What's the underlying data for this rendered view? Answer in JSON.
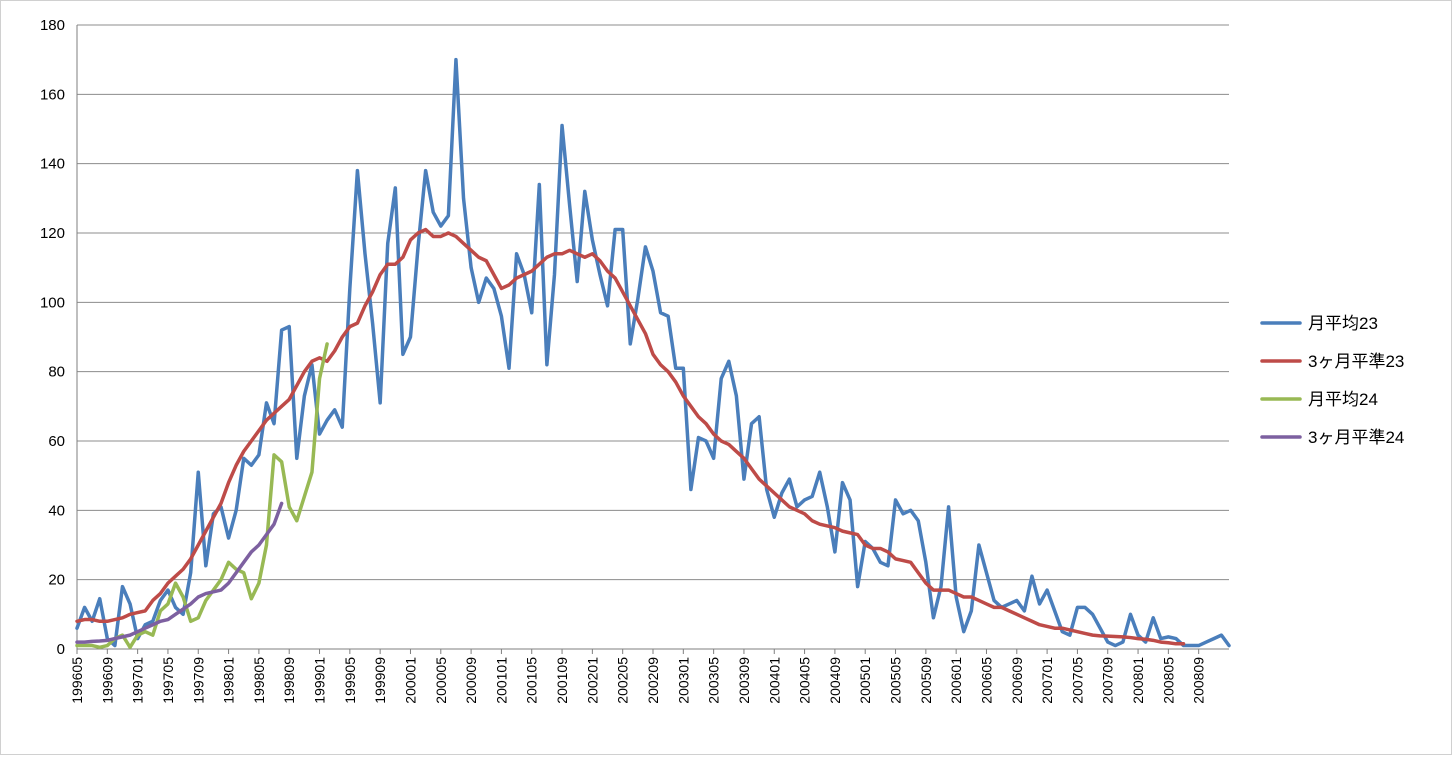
{
  "chart_data": {
    "type": "line",
    "title": "",
    "xlabel": "",
    "ylabel": "",
    "ylim": [
      0,
      180
    ],
    "yticks": [
      "0",
      "20",
      "40",
      "60",
      "80",
      "100",
      "120",
      "140",
      "160",
      "180"
    ],
    "grid": "horizontal",
    "legend_position": "right",
    "x_start_month": "199605",
    "x_tick_labels": [
      "199605",
      "199609",
      "199701",
      "199705",
      "199709",
      "199801",
      "199805",
      "199809",
      "199901",
      "199905",
      "199909",
      "200001",
      "200005",
      "200009",
      "200101",
      "200105",
      "200109",
      "200201",
      "200205",
      "200209",
      "200301",
      "200305",
      "200309",
      "200401",
      "200405",
      "200409",
      "200501",
      "200505",
      "200509",
      "200601",
      "200605",
      "200609",
      "200701",
      "200705",
      "200709",
      "200801",
      "200805",
      "200809"
    ],
    "series": [
      {
        "name": "月平均23",
        "color": "#4a7ebb",
        "values": [
          6,
          12,
          8,
          14.5,
          3,
          1,
          18,
          13,
          3,
          7,
          8,
          14,
          17,
          12,
          10,
          22,
          51,
          24,
          39,
          41,
          32,
          40,
          55,
          53,
          56,
          71,
          65,
          92,
          93,
          55,
          73,
          82,
          62,
          66,
          69,
          64,
          104,
          138,
          114,
          94,
          71,
          117,
          133,
          85,
          90,
          116,
          138,
          126,
          122,
          125,
          170,
          130,
          110,
          100,
          107,
          104,
          96,
          81,
          114,
          108,
          97,
          134,
          82,
          108,
          151,
          128,
          106,
          132,
          118,
          108,
          99,
          121,
          121,
          88,
          101,
          116,
          109,
          97,
          96,
          81,
          81,
          46,
          61,
          60,
          55,
          78,
          83,
          73,
          49,
          65,
          67,
          46,
          38,
          45,
          49,
          41,
          43,
          44,
          51,
          41,
          28,
          48,
          43,
          18,
          31,
          29,
          25,
          24,
          43,
          39,
          40,
          37,
          25,
          9,
          18,
          41,
          15,
          5,
          11,
          30,
          22,
          14,
          12,
          13,
          14,
          11,
          21,
          13,
          17,
          11,
          5,
          4,
          12,
          12,
          10,
          6,
          2,
          1,
          2,
          10,
          4,
          2,
          9,
          3,
          3.5,
          3,
          1,
          1,
          1,
          2,
          3,
          4,
          1
        ]
      },
      {
        "name": "3ヶ月平準23",
        "color": "#be4b48",
        "values": [
          8,
          8.5,
          8.5,
          8,
          8,
          8.5,
          9,
          10,
          10.5,
          11,
          14,
          16,
          19,
          21,
          23,
          26,
          30,
          34,
          38,
          42,
          48,
          53,
          57,
          60,
          63,
          66,
          68,
          70,
          72,
          76,
          80,
          83,
          84,
          83,
          86,
          90,
          93,
          94,
          99,
          103,
          108,
          111,
          111,
          113,
          118,
          120,
          121,
          119,
          119,
          120,
          119,
          117,
          115,
          113,
          112,
          108,
          104,
          105,
          107,
          108,
          109,
          111,
          113,
          114,
          114,
          115,
          114,
          113,
          114,
          112,
          109,
          107,
          103,
          99,
          95,
          91,
          85,
          82,
          80,
          77,
          73,
          70,
          67,
          65,
          62,
          60,
          59,
          57,
          55,
          52,
          49,
          47,
          45,
          43,
          41,
          40,
          39,
          37,
          36,
          35.5,
          35,
          34,
          33.5,
          33,
          30,
          29,
          29,
          28,
          26,
          25.5,
          25,
          22,
          19,
          17,
          17,
          17,
          16,
          15,
          15,
          14,
          13,
          12,
          12,
          11,
          10,
          9,
          8,
          7,
          6.5,
          6,
          6,
          5.5,
          5,
          4.5,
          4,
          3.8,
          3.7,
          3.6,
          3.5,
          3.3,
          3,
          2.8,
          2.5,
          2,
          1.8,
          1.5,
          1.5
        ]
      },
      {
        "name": "月平均24",
        "color": "#98b954",
        "values": [
          1,
          1,
          1,
          0.5,
          1,
          3,
          4,
          0.5,
          4,
          5,
          4,
          11,
          13,
          19,
          15,
          8,
          9,
          14,
          17,
          20,
          25,
          23,
          22,
          14.5,
          19,
          30,
          56,
          54,
          41,
          37,
          44,
          51,
          78,
          88
        ]
      },
      {
        "name": "3ヶ月平準24",
        "color": "#7d60a0",
        "values": [
          2,
          2,
          2.2,
          2.3,
          2.5,
          3,
          3.5,
          4,
          5,
          6,
          7,
          8,
          8.5,
          10,
          11.5,
          13,
          15,
          16,
          16.5,
          17,
          19,
          22,
          25,
          28,
          30,
          33,
          36,
          42
        ]
      }
    ]
  }
}
